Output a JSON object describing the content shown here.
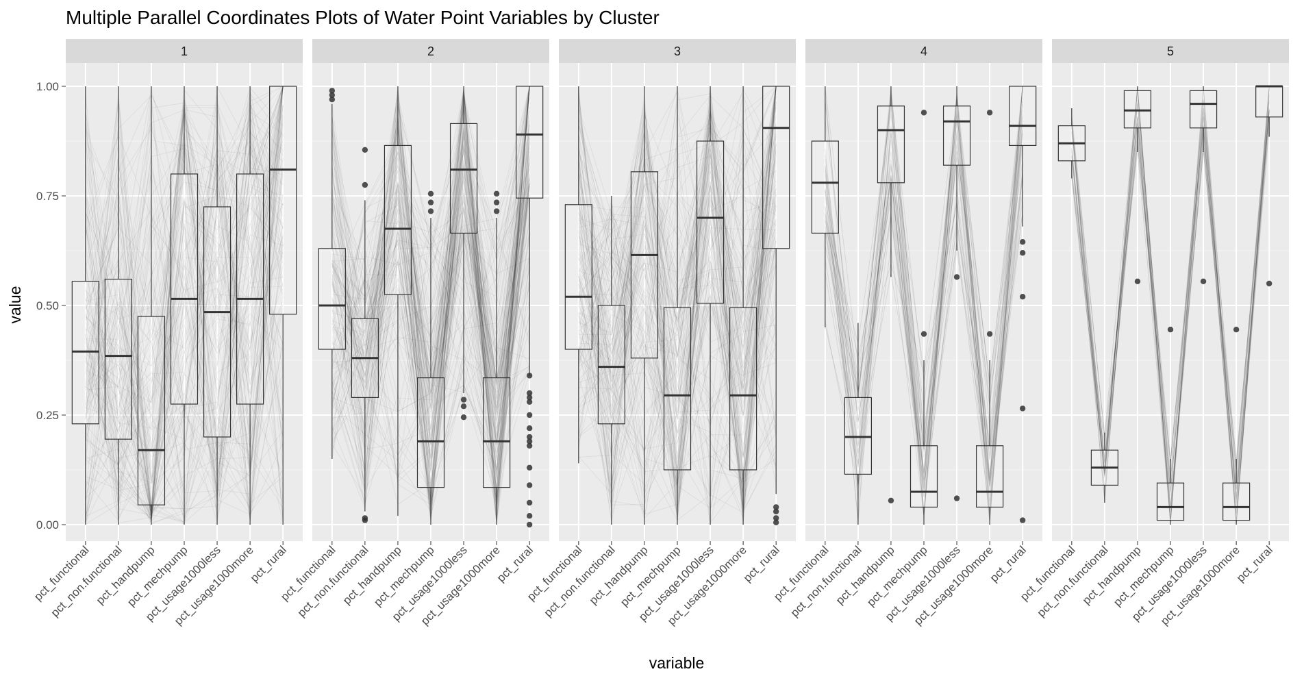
{
  "chart_data": {
    "type": "parallel-coordinates-boxplot",
    "title": "Multiple Parallel Coordinates Plots of Water Point Variables by Cluster",
    "xlabel": "variable",
    "ylabel": "value",
    "ylim": [
      -0.05,
      1.05
    ],
    "y_ticks": [
      0,
      0.25,
      0.5,
      0.75,
      1
    ],
    "y_tick_labels": [
      "0.00",
      "0.25",
      "0.50",
      "0.75",
      "1.00"
    ],
    "grid": true,
    "variables": [
      "pct_functional",
      "pct_non.functional",
      "pct_handpump",
      "pct_mechpump",
      "pct_usage1000less",
      "pct_usage1000more",
      "pct_rural"
    ],
    "panels": [
      {
        "label": "1",
        "line_count": 150,
        "line_opacity": 0.06,
        "boxes": [
          {
            "q1": 0.23,
            "median": 0.395,
            "q3": 0.555,
            "lo": 0.0,
            "hi": 1.0,
            "outliers": []
          },
          {
            "q1": 0.195,
            "median": 0.385,
            "q3": 0.56,
            "lo": 0.0,
            "hi": 1.0,
            "outliers": []
          },
          {
            "q1": 0.045,
            "median": 0.17,
            "q3": 0.475,
            "lo": 0.0,
            "hi": 1.0,
            "outliers": []
          },
          {
            "q1": 0.275,
            "median": 0.515,
            "q3": 0.8,
            "lo": 0.0,
            "hi": 1.0,
            "outliers": []
          },
          {
            "q1": 0.2,
            "median": 0.485,
            "q3": 0.725,
            "lo": 0.0,
            "hi": 1.0,
            "outliers": []
          },
          {
            "q1": 0.275,
            "median": 0.515,
            "q3": 0.8,
            "lo": 0.0,
            "hi": 1.0,
            "outliers": []
          },
          {
            "q1": 0.48,
            "median": 0.81,
            "q3": 1.0,
            "lo": 0.0,
            "hi": 1.0,
            "outliers": []
          }
        ]
      },
      {
        "label": "2",
        "line_count": 150,
        "line_opacity": 0.06,
        "boxes": [
          {
            "q1": 0.4,
            "median": 0.5,
            "q3": 0.63,
            "lo": 0.15,
            "hi": 0.96,
            "outliers": [
              0.97,
              0.98,
              0.99
            ]
          },
          {
            "q1": 0.29,
            "median": 0.38,
            "q3": 0.47,
            "lo": 0.03,
            "hi": 0.74,
            "outliers": [
              0.01,
              0.015,
              0.775,
              0.855
            ]
          },
          {
            "q1": 0.525,
            "median": 0.675,
            "q3": 0.865,
            "lo": 0.02,
            "hi": 1.0,
            "outliers": []
          },
          {
            "q1": 0.085,
            "median": 0.19,
            "q3": 0.335,
            "lo": 0.0,
            "hi": 0.7,
            "outliers": [
              0.715,
              0.735,
              0.755
            ]
          },
          {
            "q1": 0.665,
            "median": 0.81,
            "q3": 0.915,
            "lo": 0.3,
            "hi": 1.0,
            "outliers": [
              0.245,
              0.27,
              0.285
            ]
          },
          {
            "q1": 0.085,
            "median": 0.19,
            "q3": 0.335,
            "lo": 0.0,
            "hi": 0.7,
            "outliers": [
              0.715,
              0.735,
              0.755
            ]
          },
          {
            "q1": 0.745,
            "median": 0.89,
            "q3": 1.0,
            "lo": 0.34,
            "hi": 1.0,
            "outliers": [
              0.0,
              0.02,
              0.05,
              0.09,
              0.13,
              0.18,
              0.19,
              0.2,
              0.22,
              0.25,
              0.28,
              0.29,
              0.3,
              0.34
            ]
          }
        ]
      },
      {
        "label": "3",
        "line_count": 150,
        "line_opacity": 0.06,
        "boxes": [
          {
            "q1": 0.4,
            "median": 0.52,
            "q3": 0.73,
            "lo": 0.14,
            "hi": 1.0,
            "outliers": []
          },
          {
            "q1": 0.23,
            "median": 0.36,
            "q3": 0.5,
            "lo": 0.0,
            "hi": 0.75,
            "outliers": []
          },
          {
            "q1": 0.38,
            "median": 0.615,
            "q3": 0.805,
            "lo": 0.0,
            "hi": 1.0,
            "outliers": []
          },
          {
            "q1": 0.125,
            "median": 0.295,
            "q3": 0.495,
            "lo": 0.0,
            "hi": 1.0,
            "outliers": []
          },
          {
            "q1": 0.505,
            "median": 0.7,
            "q3": 0.875,
            "lo": 0.0,
            "hi": 1.0,
            "outliers": []
          },
          {
            "q1": 0.125,
            "median": 0.295,
            "q3": 0.495,
            "lo": 0.0,
            "hi": 1.0,
            "outliers": []
          },
          {
            "q1": 0.63,
            "median": 0.905,
            "q3": 1.0,
            "lo": 0.07,
            "hi": 1.0,
            "outliers": [
              0.005,
              0.015,
              0.03,
              0.04
            ]
          }
        ]
      },
      {
        "label": "4",
        "line_count": 35,
        "line_opacity": 0.09,
        "boxes": [
          {
            "q1": 0.665,
            "median": 0.78,
            "q3": 0.875,
            "lo": 0.45,
            "hi": 1.0,
            "outliers": []
          },
          {
            "q1": 0.115,
            "median": 0.2,
            "q3": 0.29,
            "lo": 0.0,
            "hi": 0.46,
            "outliers": []
          },
          {
            "q1": 0.78,
            "median": 0.9,
            "q3": 0.955,
            "lo": 0.565,
            "hi": 1.0,
            "outliers": [
              0.055
            ]
          },
          {
            "q1": 0.04,
            "median": 0.075,
            "q3": 0.18,
            "lo": 0.0,
            "hi": 0.375,
            "outliers": [
              0.435,
              0.94
            ]
          },
          {
            "q1": 0.82,
            "median": 0.92,
            "q3": 0.955,
            "lo": 0.625,
            "hi": 1.0,
            "outliers": [
              0.06,
              0.565
            ]
          },
          {
            "q1": 0.04,
            "median": 0.075,
            "q3": 0.18,
            "lo": 0.0,
            "hi": 0.375,
            "outliers": [
              0.435,
              0.94
            ]
          },
          {
            "q1": 0.865,
            "median": 0.91,
            "q3": 1.0,
            "lo": 0.68,
            "hi": 1.0,
            "outliers": [
              0.01,
              0.265,
              0.52,
              0.62,
              0.645
            ]
          }
        ]
      },
      {
        "label": "5",
        "line_count": 18,
        "line_opacity": 0.12,
        "boxes": [
          {
            "q1": 0.83,
            "median": 0.87,
            "q3": 0.91,
            "lo": 0.79,
            "hi": 0.95,
            "outliers": []
          },
          {
            "q1": 0.09,
            "median": 0.13,
            "q3": 0.17,
            "lo": 0.05,
            "hi": 0.21,
            "outliers": []
          },
          {
            "q1": 0.905,
            "median": 0.945,
            "q3": 0.99,
            "lo": 0.85,
            "hi": 1.0,
            "outliers": [
              0.555
            ]
          },
          {
            "q1": 0.01,
            "median": 0.04,
            "q3": 0.095,
            "lo": 0.0,
            "hi": 0.15,
            "outliers": [
              0.445
            ]
          },
          {
            "q1": 0.905,
            "median": 0.96,
            "q3": 0.99,
            "lo": 0.85,
            "hi": 1.0,
            "outliers": [
              0.555
            ]
          },
          {
            "q1": 0.01,
            "median": 0.04,
            "q3": 0.095,
            "lo": 0.0,
            "hi": 0.15,
            "outliers": [
              0.445
            ]
          },
          {
            "q1": 0.93,
            "median": 1.0,
            "q3": 1.0,
            "lo": 0.885,
            "hi": 1.0,
            "outliers": [
              0.55
            ]
          }
        ]
      }
    ]
  }
}
